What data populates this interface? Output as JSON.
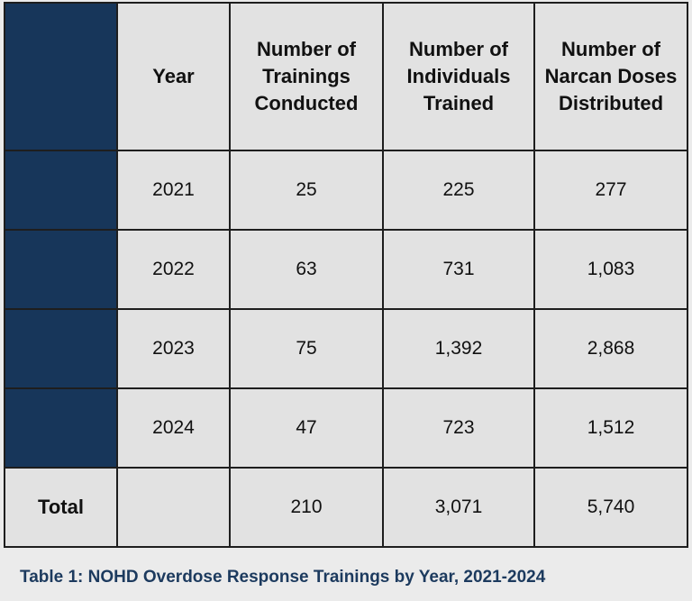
{
  "table": {
    "headers": [
      "",
      "Year",
      "Number of Trainings Conducted",
      "Number of Individuals Trained",
      "Number of Narcan Doses Distributed"
    ],
    "rows": [
      [
        "",
        "2021",
        "25",
        "225",
        "277"
      ],
      [
        "",
        "2022",
        "63",
        "731",
        "1,083"
      ],
      [
        "",
        "2023",
        "75",
        "1,392",
        "2,868"
      ],
      [
        "",
        "2024",
        "47",
        "723",
        "1,512"
      ]
    ],
    "total_row": [
      "Total",
      "",
      "210",
      "3,071",
      "5,740"
    ]
  },
  "caption": "Table 1:  NOHD Overdose Response Trainings by Year, 2021-2024",
  "colors": {
    "navy_accent": "#17365a",
    "cell_background": "#e2e2e2",
    "caption_text": "#1c3a5e",
    "border": "#1e1e1e"
  }
}
